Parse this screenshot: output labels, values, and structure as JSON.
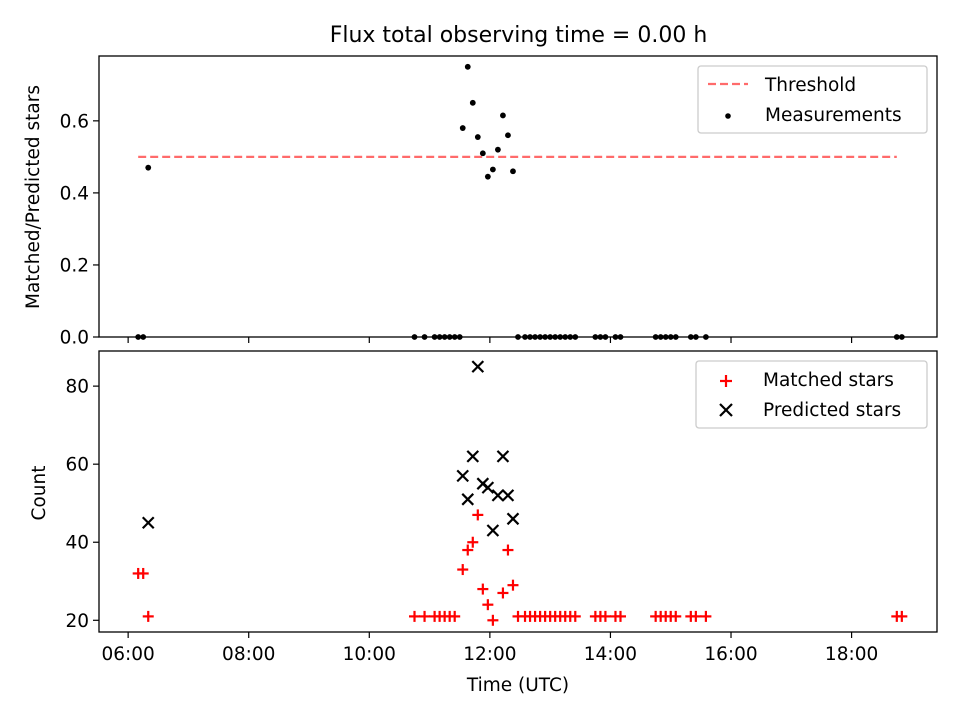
{
  "chart_data": [
    {
      "type": "scatter",
      "panel": "top",
      "title": "Flux total observing time = 0.00 h",
      "xlabel": "",
      "ylabel": "Matched/Predicted stars",
      "xlim": [
        "05:31",
        "19:25"
      ],
      "ylim": [
        0,
        0.78
      ],
      "yticks": [
        "0.0",
        "0.2",
        "0.4",
        "0.6"
      ],
      "grid": false,
      "legend_position": "top-right",
      "series": [
        {
          "name": "Threshold",
          "style": "dashed-line",
          "color": "#ff6b6b",
          "x": [
            "06:10",
            "18:45"
          ],
          "y": [
            0.5,
            0.5
          ]
        },
        {
          "name": "Measurements",
          "style": "dot",
          "color": "#000000",
          "x": [
            "06:20",
            "11:33",
            "11:38",
            "11:43",
            "11:48",
            "11:53",
            "11:58",
            "12:03",
            "12:08",
            "12:13",
            "12:18",
            "12:23",
            "12:28",
            "06:10",
            "06:15",
            "10:45",
            "10:55",
            "11:05",
            "11:10",
            "11:15",
            "11:20",
            "11:25",
            "11:30",
            "12:35",
            "12:40",
            "12:45",
            "12:50",
            "12:55",
            "13:00",
            "13:05",
            "13:10",
            "13:15",
            "13:20",
            "13:25",
            "13:45",
            "13:50",
            "13:55",
            "14:05",
            "14:10",
            "14:45",
            "14:50",
            "14:55",
            "15:00",
            "15:05",
            "15:20",
            "15:25",
            "15:35",
            "18:45",
            "18:50"
          ],
          "y": [
            0.47,
            0.58,
            0.75,
            0.65,
            0.555,
            0.51,
            0.445,
            0.465,
            0.52,
            0.615,
            0.56,
            0.46,
            0.0,
            0,
            0,
            0,
            0,
            0,
            0,
            0,
            0,
            0,
            0,
            0,
            0,
            0,
            0,
            0,
            0,
            0,
            0,
            0,
            0,
            0,
            0,
            0,
            0,
            0,
            0,
            0,
            0,
            0,
            0,
            0,
            0,
            0,
            0,
            0,
            0
          ]
        }
      ]
    },
    {
      "type": "scatter",
      "panel": "bottom",
      "title": "",
      "xlabel": "Time (UTC)",
      "ylabel": "Count",
      "xlim": [
        "05:31",
        "19:25"
      ],
      "ylim": [
        17,
        89
      ],
      "xticks": [
        "06:00",
        "08:00",
        "10:00",
        "12:00",
        "14:00",
        "16:00",
        "18:00"
      ],
      "yticks": [
        "20",
        "40",
        "60",
        "80"
      ],
      "grid": false,
      "legend_position": "top-right",
      "series": [
        {
          "name": "Matched stars",
          "style": "plus",
          "color": "#ff0000",
          "x": [
            "06:10",
            "06:15",
            "06:20",
            "10:45",
            "10:55",
            "11:05",
            "11:10",
            "11:15",
            "11:20",
            "11:25",
            "11:33",
            "11:38",
            "11:43",
            "11:48",
            "11:53",
            "11:58",
            "12:03",
            "12:13",
            "12:18",
            "12:23",
            "12:28",
            "12:35",
            "12:40",
            "12:45",
            "12:50",
            "12:55",
            "13:00",
            "13:05",
            "13:10",
            "13:15",
            "13:20",
            "13:25",
            "13:45",
            "13:50",
            "13:55",
            "14:05",
            "14:10",
            "14:45",
            "14:50",
            "14:55",
            "15:00",
            "15:05",
            "15:20",
            "15:25",
            "15:35",
            "18:45",
            "18:50"
          ],
          "y": [
            32,
            32,
            21,
            21,
            21,
            21,
            21,
            21,
            21,
            21,
            33,
            38,
            40,
            47,
            28,
            24,
            20,
            27,
            38,
            29,
            21,
            21,
            21,
            21,
            21,
            21,
            21,
            21,
            21,
            21,
            21,
            21,
            21,
            21,
            21,
            21,
            21,
            21,
            21,
            21,
            21,
            21,
            21,
            21,
            21,
            21,
            21
          ]
        },
        {
          "name": "Predicted stars",
          "style": "x",
          "color": "#000000",
          "x": [
            "06:20",
            "11:33",
            "11:38",
            "11:43",
            "11:48",
            "11:53",
            "11:58",
            "12:03",
            "12:08",
            "12:13",
            "12:18",
            "12:23"
          ],
          "y": [
            45,
            57,
            51,
            62,
            85,
            55,
            54,
            43,
            52,
            62,
            52,
            46
          ]
        }
      ]
    }
  ]
}
